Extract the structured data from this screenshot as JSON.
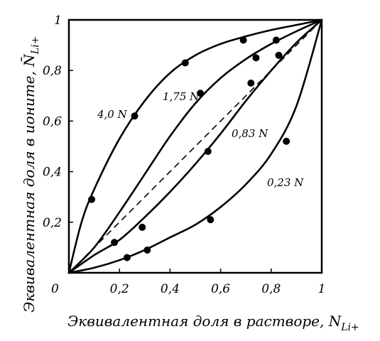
{
  "chart_data": {
    "type": "scatter",
    "xlabel": "Эквивалентная доля в растворе, N",
    "xlabel_sub": "Li+",
    "ylabel": "Эквивалентная доля в ионите, N̄",
    "ylabel_sub": "Li+",
    "xlim": [
      0,
      1
    ],
    "ylim": [
      0,
      1
    ],
    "x_ticks": [
      "0",
      "0,2",
      "0,4",
      "0,6",
      "0,8",
      "1"
    ],
    "y_ticks": [
      "0,2",
      "0,4",
      "0,6",
      "0,8",
      "1"
    ],
    "grid": false,
    "diagonal": {
      "style": "dashed",
      "from": [
        0,
        0
      ],
      "to": [
        1,
        1
      ]
    },
    "series": [
      {
        "name": "4,0 N",
        "curve": [
          [
            0,
            0
          ],
          [
            0.05,
            0.2
          ],
          [
            0.1,
            0.33
          ],
          [
            0.2,
            0.53
          ],
          [
            0.3,
            0.68
          ],
          [
            0.4,
            0.79
          ],
          [
            0.5,
            0.86
          ],
          [
            0.6,
            0.905
          ],
          [
            0.7,
            0.935
          ],
          [
            0.8,
            0.96
          ],
          [
            0.9,
            0.98
          ],
          [
            1,
            1
          ]
        ],
        "points": [
          [
            0.09,
            0.29
          ],
          [
            0.26,
            0.62
          ],
          [
            0.46,
            0.83
          ],
          [
            0.69,
            0.92
          ],
          [
            0.82,
            0.92
          ]
        ]
      },
      {
        "name": "1,75 N",
        "curve": [
          [
            0,
            0
          ],
          [
            0.1,
            0.1
          ],
          [
            0.2,
            0.24
          ],
          [
            0.3,
            0.39
          ],
          [
            0.4,
            0.54
          ],
          [
            0.5,
            0.67
          ],
          [
            0.6,
            0.77
          ],
          [
            0.7,
            0.845
          ],
          [
            0.8,
            0.905
          ],
          [
            0.9,
            0.955
          ],
          [
            1,
            1
          ]
        ],
        "points": [
          [
            0.52,
            0.71
          ],
          [
            0.74,
            0.85
          ]
        ]
      },
      {
        "name": "0,83 N",
        "curve": [
          [
            0,
            0
          ],
          [
            0.1,
            0.07
          ],
          [
            0.2,
            0.13
          ],
          [
            0.3,
            0.22
          ],
          [
            0.4,
            0.32
          ],
          [
            0.5,
            0.43
          ],
          [
            0.6,
            0.55
          ],
          [
            0.7,
            0.68
          ],
          [
            0.8,
            0.8
          ],
          [
            0.9,
            0.91
          ],
          [
            1,
            1
          ]
        ],
        "points": [
          [
            0.18,
            0.12
          ],
          [
            0.29,
            0.18
          ],
          [
            0.55,
            0.48
          ],
          [
            0.72,
            0.75
          ],
          [
            0.83,
            0.86
          ]
        ]
      },
      {
        "name": "0,23 N",
        "curve": [
          [
            0,
            0
          ],
          [
            0.1,
            0.02
          ],
          [
            0.2,
            0.05
          ],
          [
            0.3,
            0.09
          ],
          [
            0.4,
            0.14
          ],
          [
            0.5,
            0.19
          ],
          [
            0.6,
            0.26
          ],
          [
            0.7,
            0.35
          ],
          [
            0.8,
            0.47
          ],
          [
            0.9,
            0.66
          ],
          [
            1,
            1
          ]
        ],
        "points": [
          [
            0.23,
            0.06
          ],
          [
            0.31,
            0.09
          ],
          [
            0.56,
            0.21
          ],
          [
            0.86,
            0.52
          ]
        ]
      }
    ]
  }
}
